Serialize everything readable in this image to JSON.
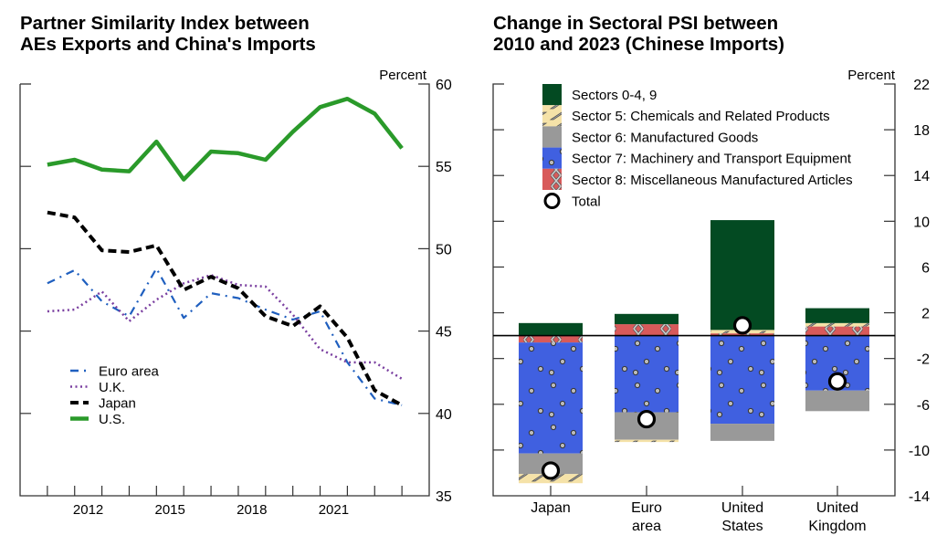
{
  "chart_data": [
    {
      "type": "line",
      "title_lines": [
        "Partner Similarity Index between",
        "AEs Exports and China's Imports"
      ],
      "unit_label": "Percent",
      "xlabel": "",
      "ylabel": "Percent",
      "x": [
        2010,
        2011,
        2012,
        2013,
        2014,
        2015,
        2016,
        2017,
        2018,
        2019,
        2020,
        2021,
        2022,
        2023
      ],
      "xlim": [
        2009,
        2024
      ],
      "x_tick_labels": [
        "2012",
        "2015",
        "2018",
        "2021"
      ],
      "x_tick_label_values": [
        2012,
        2015,
        2018,
        2021
      ],
      "ylim": [
        35,
        60
      ],
      "y_ticks": [
        35,
        40,
        45,
        50,
        55,
        60
      ],
      "legend_position": "bottom-left",
      "series": [
        {
          "name": "Euro area",
          "color": "#1f5fbf",
          "style": "dashdot",
          "values": [
            47.9,
            48.7,
            46.8,
            45.9,
            48.8,
            45.8,
            47.3,
            47.0,
            46.3,
            45.7,
            46.2,
            43.1,
            40.9,
            40.5
          ]
        },
        {
          "name": "U.K.",
          "color": "#7a3fa0",
          "style": "dotted",
          "values": [
            46.2,
            46.3,
            47.4,
            45.6,
            46.9,
            47.9,
            48.4,
            47.8,
            47.7,
            46.0,
            43.9,
            43.1,
            43.1,
            42.1
          ]
        },
        {
          "name": "Japan",
          "color": "#000000",
          "style": "dashed",
          "values": [
            52.2,
            51.9,
            49.9,
            49.8,
            50.2,
            47.5,
            48.3,
            47.6,
            45.9,
            45.3,
            46.5,
            44.6,
            41.4,
            40.5
          ]
        },
        {
          "name": "U.S.",
          "color": "#2a9a2a",
          "style": "solid",
          "values": [
            55.1,
            55.4,
            54.8,
            54.7,
            56.5,
            54.2,
            55.9,
            55.8,
            55.4,
            57.1,
            58.6,
            59.1,
            58.2,
            56.1
          ]
        }
      ]
    },
    {
      "type": "bar",
      "stacked": true,
      "title_lines": [
        "Change in Sectoral PSI between",
        "2010 and 2023 (Chinese Imports)"
      ],
      "unit_label": "Percent",
      "xlabel": "",
      "ylabel": "Percent",
      "categories": [
        [
          "Japan"
        ],
        [
          "Euro",
          "area"
        ],
        [
          "United",
          "States"
        ],
        [
          "United",
          "Kingdom"
        ]
      ],
      "ylim": [
        -14,
        22
      ],
      "y_ticks": [
        22,
        18,
        14,
        10,
        6,
        2,
        -2,
        -6,
        -10,
        -14
      ],
      "legend_position": "top-left",
      "series": [
        {
          "name": "Sectors 0-4, 9",
          "color": "#034a22",
          "pattern": "none",
          "values": [
            1.1,
            0.9,
            9.6,
            1.3
          ]
        },
        {
          "name": "Sector 5: Chemicals and Related Products",
          "color": "#f5e2a8",
          "pattern": "slash",
          "values": [
            -0.8,
            -0.2,
            0.3,
            0.3
          ]
        },
        {
          "name": "Sector 6: Manufactured Goods",
          "color": "#999999",
          "pattern": "none",
          "values": [
            -1.8,
            -2.4,
            -1.5,
            -1.8
          ]
        },
        {
          "name": "Sector 7: Machinery and Transport Equipment",
          "color": "#4060e0",
          "pattern": "dots",
          "values": [
            -9.7,
            -6.7,
            -7.7,
            -4.8
          ]
        },
        {
          "name": "Sector 8: Miscellaneous Manufactured Articles",
          "color": "#d85a5a",
          "pattern": "cross",
          "values": [
            -0.6,
            1.0,
            0.2,
            0.8
          ]
        }
      ],
      "total": {
        "name": "Total",
        "values": [
          -11.8,
          -7.3,
          0.9,
          -4.0
        ]
      }
    }
  ]
}
